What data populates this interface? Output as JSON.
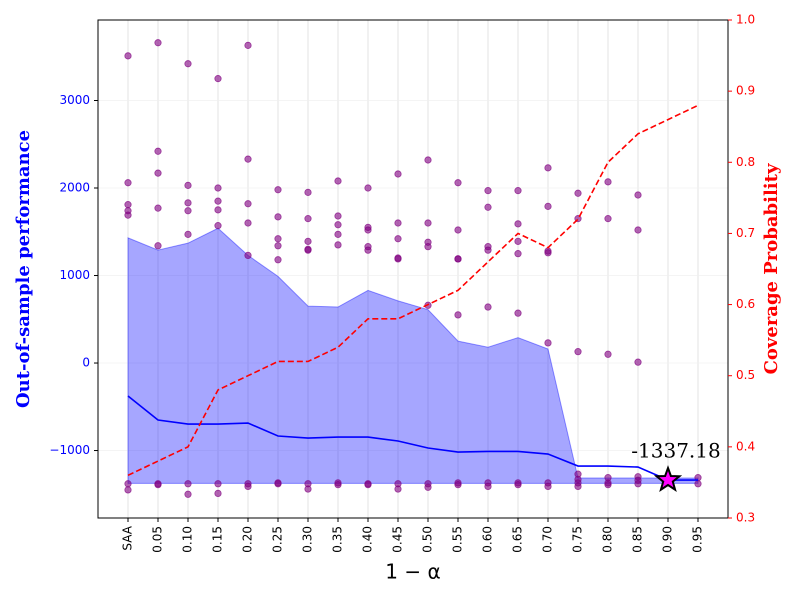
{
  "chart_data": {
    "type": "band-scatter",
    "ylabel": "Out-of-sample performance",
    "y2label": "Coverage Probability",
    "xlabel": "1 − α",
    "categories": [
      "SAA",
      "0.05",
      "0.10",
      "0.15",
      "0.20",
      "0.25",
      "0.30",
      "0.35",
      "0.40",
      "0.45",
      "0.50",
      "0.55",
      "0.60",
      "0.65",
      "0.70",
      "0.75",
      "0.80",
      "0.85",
      "0.90",
      "0.95"
    ],
    "ylim": [
      -1771,
      3920
    ],
    "yticks": [
      {
        "value": -1000,
        "label": "−1000"
      },
      0,
      1000,
      2000,
      3000
    ],
    "y2lim": [
      0.3,
      1.0
    ],
    "y2ticks": [
      0.3,
      0.4,
      0.5,
      0.6,
      0.7,
      0.8,
      0.9,
      {
        "value": 1,
        "label": "1.0"
      }
    ],
    "grid": true,
    "band": {
      "color": "#0000ff",
      "upper": [
        1430,
        1290,
        1370,
        1540,
        1230,
        990,
        650,
        640,
        830,
        710,
        610,
        250,
        180,
        290,
        160,
        -1314,
        -1314,
        -1314,
        -1314,
        -1314
      ],
      "lower": [
        -1375,
        -1375,
        -1375,
        -1375,
        -1375,
        -1375,
        -1375,
        -1375,
        -1375,
        -1375,
        -1375,
        -1375,
        -1375,
        -1375,
        -1375,
        -1375,
        -1375,
        -1375,
        -1375,
        -1375
      ]
    },
    "mean": {
      "color": "#0000ff",
      "values": [
        -377,
        -651,
        -697,
        -697,
        -686,
        -834,
        -857,
        -846,
        -846,
        -891,
        -971,
        -1017,
        -1010,
        -1010,
        -1040,
        -1177,
        -1177,
        -1189,
        -1337.18,
        -1337
      ]
    },
    "coverage": {
      "color": "#ff0000",
      "axis": "y2",
      "values": [
        0.36,
        0.38,
        0.4,
        0.48,
        0.5,
        0.52,
        0.52,
        0.54,
        0.58,
        0.58,
        0.6,
        0.62,
        0.66,
        0.7,
        0.68,
        0.72,
        0.8,
        0.84,
        0.86,
        0.88
      ]
    },
    "scatter": {
      "color": "#800080",
      "values": [
        [
          3510,
          2060,
          1810,
          1740,
          1690,
          -1380,
          -1450
        ],
        [
          3660,
          2420,
          2170,
          1770,
          1340,
          -1380,
          -1390
        ],
        [
          3420,
          2030,
          1830,
          1740,
          1470,
          -1380,
          -1500
        ],
        [
          3250,
          2000,
          1850,
          1750,
          1570,
          -1380,
          -1490
        ],
        [
          3630,
          2330,
          1820,
          1600,
          1230,
          -1380,
          -1410
        ],
        [
          1980,
          1670,
          1420,
          1340,
          1180,
          -1380,
          -1370
        ],
        [
          1950,
          1650,
          1390,
          1300,
          1290,
          -1380,
          -1440
        ],
        [
          2080,
          1680,
          1580,
          1470,
          1350,
          -1370,
          -1390
        ],
        [
          2000,
          1550,
          1520,
          1330,
          1290,
          -1380,
          -1390
        ],
        [
          2160,
          1600,
          1420,
          1200,
          1190,
          -1380,
          -1440
        ],
        [
          2320,
          1600,
          1380,
          1330,
          660,
          -1380,
          -1420
        ],
        [
          2060,
          1520,
          1190,
          1190,
          550,
          -1370,
          -1390
        ],
        [
          1970,
          1780,
          1330,
          1290,
          640,
          -1370,
          -1410
        ],
        [
          1970,
          1590,
          1390,
          1250,
          570,
          -1370,
          -1390
        ],
        [
          2230,
          1790,
          1280,
          1260,
          230,
          -1370,
          -1410
        ],
        [
          1940,
          1650,
          130,
          -1270,
          -1330,
          -1370,
          -1410
        ],
        [
          2070,
          1650,
          100,
          -1310,
          -1370,
          -1390
        ],
        [
          1920,
          1520,
          10,
          -1300,
          -1340,
          -1380
        ],
        [],
        [
          -1310,
          -1380
        ]
      ]
    },
    "highlight": {
      "category": "0.90",
      "value": -1337.18,
      "label": "-1337.18",
      "color": "#ff00ff"
    }
  }
}
